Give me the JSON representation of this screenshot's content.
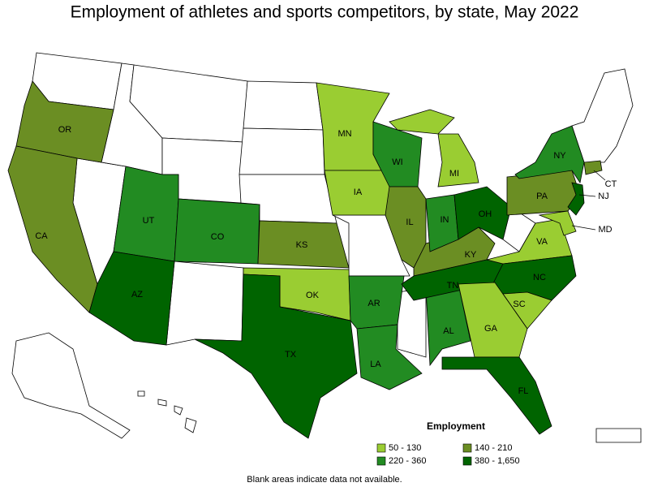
{
  "title": "Employment of athletes and sports competitors, by state, May 2022",
  "legend": {
    "title": "Employment",
    "items": [
      {
        "label": "50 - 130",
        "color": "#9acd32",
        "states": [
          "OK",
          "MN",
          "IA",
          "MI",
          "GA",
          "SC",
          "VA",
          "MD"
        ]
      },
      {
        "label": "140 - 210",
        "color": "#6b8e23",
        "states": [
          "OR",
          "CA",
          "KS",
          "IL",
          "KY",
          "PA",
          "CT"
        ]
      },
      {
        "label": "220 - 360",
        "color": "#228b22",
        "states": [
          "UT",
          "CO",
          "WI",
          "IN",
          "AR",
          "LA",
          "AL",
          "NY"
        ]
      },
      {
        "label": "380 - 1,650",
        "color": "#006400",
        "states": [
          "AZ",
          "TX",
          "OH",
          "TN",
          "NC",
          "FL",
          "NJ"
        ]
      }
    ]
  },
  "footnote": "Blank areas indicate data not available."
}
